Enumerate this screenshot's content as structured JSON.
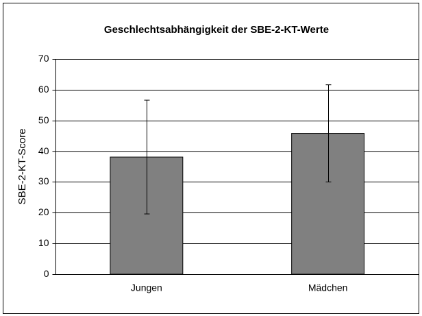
{
  "chart_data": {
    "type": "bar",
    "title": "Geschlechtsabhängigkeit der SBE-2-KT-Werte",
    "y_label": "SBE-2-KT-Score",
    "categories": [
      "Jungen",
      "Mädchen"
    ],
    "values": [
      38.1,
      45.8
    ],
    "errors": [
      18.5,
      15.8
    ],
    "color": "#808080",
    "ylim": [
      0,
      70
    ],
    "yticks": [
      0,
      10,
      20,
      30,
      40,
      50,
      60,
      70
    ],
    "grid": true
  }
}
